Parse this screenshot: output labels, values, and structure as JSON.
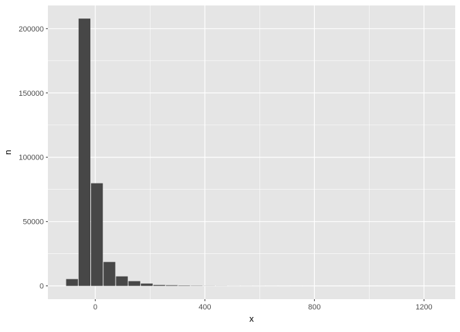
{
  "chart_data": {
    "type": "bar",
    "title": "",
    "xlabel": "x",
    "ylabel": "n",
    "xlim": [
      -173,
      1314
    ],
    "ylim": [
      -10300,
      218000
    ],
    "grid": true,
    "x_ticks": [
      0,
      400,
      800,
      1200
    ],
    "x_tick_labels": [
      "0",
      "400",
      "800",
      "1200"
    ],
    "y_ticks": [
      0,
      50000,
      100000,
      150000,
      200000
    ],
    "y_tick_labels": [
      "0",
      "50000",
      "100000",
      "150000",
      "200000"
    ],
    "binwidth": 45.5,
    "bin_centers": [
      -85,
      -39.5,
      6,
      51.5,
      97,
      142.5,
      188,
      233.5,
      279,
      324.5,
      370,
      415.5,
      461,
      506.5,
      552,
      597.5,
      643,
      688.5,
      734,
      779.5,
      825,
      870.5,
      916,
      961.5,
      1007,
      1052.5,
      1098,
      1143.5,
      1189,
      1234.5
    ],
    "values": [
      5300,
      207800,
      79800,
      18600,
      7400,
      3700,
      1800,
      700,
      500,
      300,
      200,
      100,
      80,
      50,
      40,
      30,
      20,
      15,
      10,
      8,
      6,
      5,
      4,
      3,
      2,
      2,
      1,
      1,
      1,
      1
    ],
    "colors": {
      "bar": "#474747",
      "panel": "#e5e5e5",
      "grid": "#ffffff"
    }
  }
}
